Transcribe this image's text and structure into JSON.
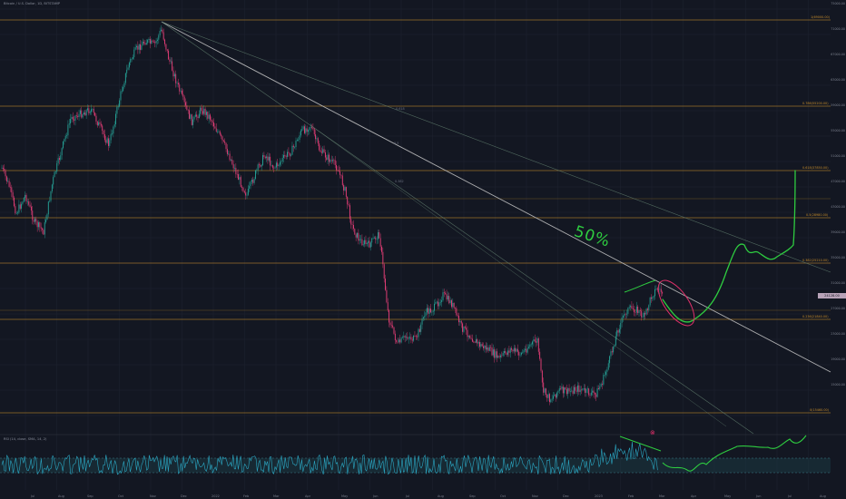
{
  "legend": {
    "symbol_line": "Bitcoin / U.S. Dollar, 1D, BITSTAMP"
  },
  "indicator": {
    "legend": "RSI (14, close, SMA, 14, 2)"
  },
  "colors": {
    "background": "#131722",
    "up_candle": "#26a69a",
    "down_candle": "#ec407a",
    "fib_line": "#c58b2a",
    "trendline": "#c8c8c8",
    "drawing": "#2ecc40",
    "circle": "#e0306a",
    "rsi": "#2ba8c4"
  },
  "price_scale": {
    "ticks": [
      "75000.00",
      "71000.00",
      "67000.00",
      "63000.00",
      "59000.00",
      "55000.00",
      "51000.00",
      "47000.00",
      "43000.00",
      "39000.00",
      "35000.00",
      "31000.00",
      "27000.00",
      "23000.00",
      "19000.00",
      "15000.00"
    ],
    "current_price": "24128.00"
  },
  "fib_labels": [
    "1(69000.00)",
    "0.786(55200.00)",
    "0.618(37850.00)",
    "0.5(28980.00)",
    "0.382(25210.00)",
    "0.236(21840.00)",
    "0(15460.00)"
  ],
  "annotations": {
    "drawing_text": "50%",
    "marker": "⊗"
  },
  "trendline_labels": [
    "0.5",
    "0.618",
    "0.382"
  ],
  "time_axis": {
    "labels": [
      "Jul",
      "Aug",
      "Sep",
      "Oct",
      "Nov",
      "Dec",
      "2022",
      "Feb",
      "Mar",
      "Apr",
      "May",
      "Jun",
      "Jul",
      "Aug",
      "Sep",
      "Oct",
      "Nov",
      "Dec",
      "2023",
      "Feb",
      "Mar",
      "Apr",
      "May",
      "Jun",
      "Jul",
      "Aug"
    ]
  }
}
